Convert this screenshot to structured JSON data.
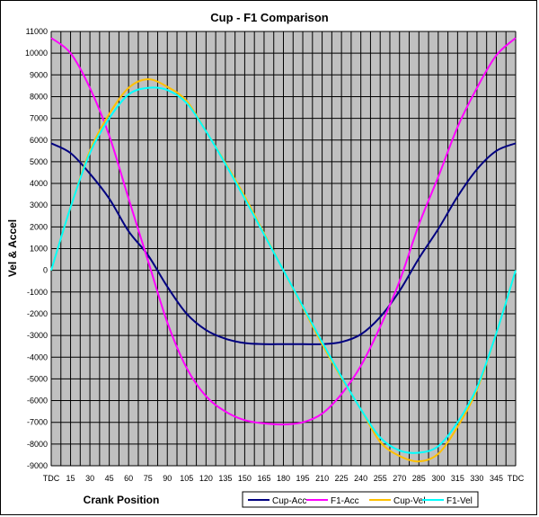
{
  "chart_data": {
    "type": "line",
    "title": "Cup - F1 Comparison",
    "xlabel": "Crank Position",
    "ylabel": "Vel & Accel",
    "categories": [
      "TDC",
      "15",
      "30",
      "45",
      "60",
      "75",
      "90",
      "105",
      "120",
      "135",
      "150",
      "165",
      "180",
      "195",
      "210",
      "225",
      "240",
      "255",
      "270",
      "285",
      "300",
      "315",
      "330",
      "345",
      "TDC"
    ],
    "x": [
      0,
      15,
      30,
      45,
      60,
      75,
      90,
      105,
      120,
      135,
      150,
      165,
      180,
      195,
      210,
      225,
      240,
      255,
      270,
      285,
      300,
      315,
      330,
      345,
      360
    ],
    "xlim": [
      0,
      360
    ],
    "ylim": [
      -9000,
      11000
    ],
    "y_ticks": [
      -9000,
      -8000,
      -7000,
      -6000,
      -5000,
      -4000,
      -3000,
      -2000,
      -1000,
      0,
      1000,
      2000,
      3000,
      4000,
      5000,
      6000,
      7000,
      8000,
      9000,
      10000,
      11000
    ],
    "grid": true,
    "plot_background": "#C0C0C0",
    "legend_position": "bottom",
    "series": [
      {
        "name": "Cup-Acc",
        "color": "#000080",
        "values": [
          5850,
          5400,
          4450,
          3300,
          1800,
          700,
          -750,
          -2000,
          -2750,
          -3150,
          -3350,
          -3400,
          -3400,
          -3400,
          -3400,
          -3300,
          -2950,
          -2150,
          -950,
          550,
          1900,
          3400,
          4650,
          5500,
          5850
        ]
      },
      {
        "name": "F1-Acc",
        "color": "#FF00FF",
        "values": [
          10700,
          10000,
          8400,
          6200,
          3300,
          450,
          -2400,
          -4500,
          -5800,
          -6500,
          -6900,
          -7050,
          -7100,
          -7000,
          -6600,
          -5700,
          -4400,
          -2600,
          -500,
          2100,
          4300,
          6600,
          8400,
          9900,
          10700
        ]
      },
      {
        "name": "Cup-Vel",
        "color": "#FFC000",
        "values": [
          0,
          2900,
          5500,
          7200,
          8400,
          8800,
          8450,
          7800,
          6400,
          4950,
          3400,
          1700,
          0,
          -1700,
          -3400,
          -4950,
          -6400,
          -7900,
          -8550,
          -8800,
          -8450,
          -7200,
          -5500,
          -2900,
          0
        ]
      },
      {
        "name": "F1-Vel",
        "color": "#00FFFF",
        "values": [
          0,
          2900,
          5400,
          7000,
          8100,
          8400,
          8300,
          7700,
          6400,
          4900,
          3300,
          1650,
          0,
          -1650,
          -3300,
          -4900,
          -6400,
          -7700,
          -8300,
          -8400,
          -8100,
          -7000,
          -5400,
          -2900,
          0
        ]
      }
    ]
  }
}
